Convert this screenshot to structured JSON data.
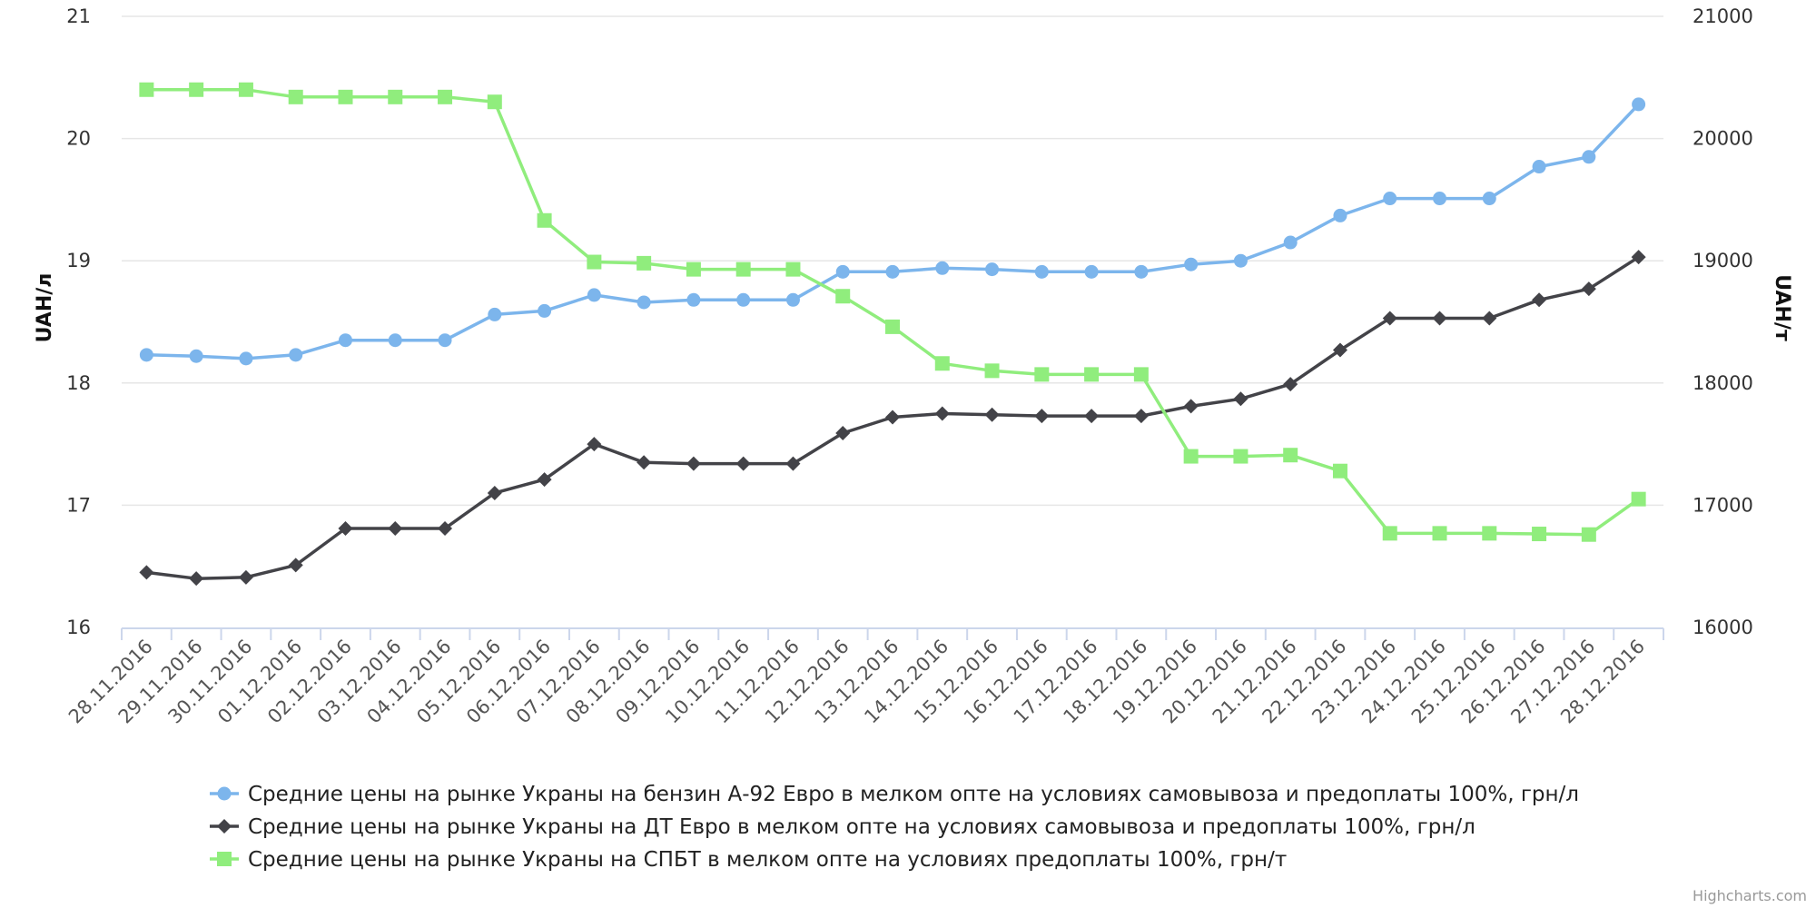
{
  "credits": "Highcharts.com",
  "colors": {
    "benzin": "#7cb5ec",
    "dt": "#434348",
    "spbt": "#90ed7d",
    "grid": "#e6e6e6",
    "axis": "#ccd6eb"
  },
  "chart_data": {
    "type": "line",
    "title": "",
    "categories": [
      "28.11.2016",
      "29.11.2016",
      "30.11.2016",
      "01.12.2016",
      "02.12.2016",
      "03.12.2016",
      "04.12.2016",
      "05.12.2016",
      "06.12.2016",
      "07.12.2016",
      "08.12.2016",
      "09.12.2016",
      "10.12.2016",
      "11.12.2016",
      "12.12.2016",
      "13.12.2016",
      "14.12.2016",
      "15.12.2016",
      "16.12.2016",
      "17.12.2016",
      "18.12.2016",
      "19.12.2016",
      "20.12.2016",
      "21.12.2016",
      "22.12.2016",
      "23.12.2016",
      "24.12.2016",
      "25.12.2016",
      "26.12.2016",
      "27.12.2016",
      "28.12.2016"
    ],
    "y_left": {
      "label": "UAH/л",
      "ylim": [
        16,
        21
      ],
      "ticks": [
        "16",
        "17",
        "18",
        "19",
        "20",
        "21"
      ]
    },
    "y_right": {
      "label": "UAH/т",
      "ylim": [
        16000,
        21000
      ],
      "ticks": [
        "16000",
        "17000",
        "18000",
        "19000",
        "20000",
        "21000"
      ]
    },
    "grid": true,
    "legend_position": "bottom-center",
    "series": [
      {
        "name": "Средние цены на рынке Украны на бензин А-92 Евро в мелком опте на условиях самовывоза и предоплаты 100%, грн/л",
        "axis": "left",
        "marker": "circle",
        "color": "#7cb5ec",
        "values": [
          18.23,
          18.22,
          18.2,
          18.23,
          18.35,
          18.35,
          18.35,
          18.56,
          18.59,
          18.72,
          18.66,
          18.68,
          18.68,
          18.68,
          18.91,
          18.91,
          18.94,
          18.93,
          18.91,
          18.91,
          18.91,
          18.97,
          19.0,
          19.15,
          19.37,
          19.51,
          19.51,
          19.51,
          19.77,
          19.85,
          20.28
        ]
      },
      {
        "name": "Средние цены на рынке Украны на ДТ Евро в мелком опте на условиях самовывоза и предоплаты 100%, грн/л",
        "axis": "left",
        "marker": "diamond",
        "color": "#434348",
        "values": [
          16.45,
          16.4,
          16.41,
          16.51,
          16.81,
          16.81,
          16.81,
          17.1,
          17.21,
          17.5,
          17.35,
          17.34,
          17.34,
          17.34,
          17.59,
          17.72,
          17.75,
          17.74,
          17.73,
          17.73,
          17.73,
          17.81,
          17.87,
          17.99,
          18.27,
          18.53,
          18.53,
          18.53,
          18.68,
          18.77,
          19.03
        ]
      },
      {
        "name": "Средние цены на рынке Украны на СПБТ в мелком опте на условиях предоплаты 100%, грн/т",
        "axis": "right",
        "marker": "square",
        "color": "#90ed7d",
        "values": [
          20400,
          20400,
          20400,
          20340,
          20340,
          20340,
          20340,
          20300,
          19330,
          18990,
          18980,
          18930,
          18930,
          18930,
          18710,
          18460,
          18160,
          18100,
          18070,
          18070,
          18070,
          17400,
          17400,
          17410,
          17280,
          16770,
          16770,
          16770,
          16765,
          16760,
          17050
        ]
      }
    ]
  }
}
